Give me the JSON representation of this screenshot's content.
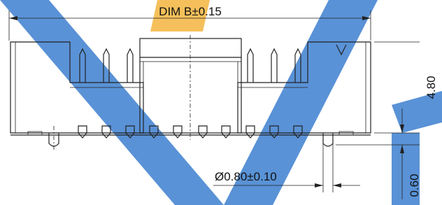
{
  "dimensions": {
    "width_label": "DIM B±0.15",
    "height_label": "4.80",
    "pin_diameter_label": "Ø0.80±0.10",
    "pin_offset_label": "0.60"
  }
}
